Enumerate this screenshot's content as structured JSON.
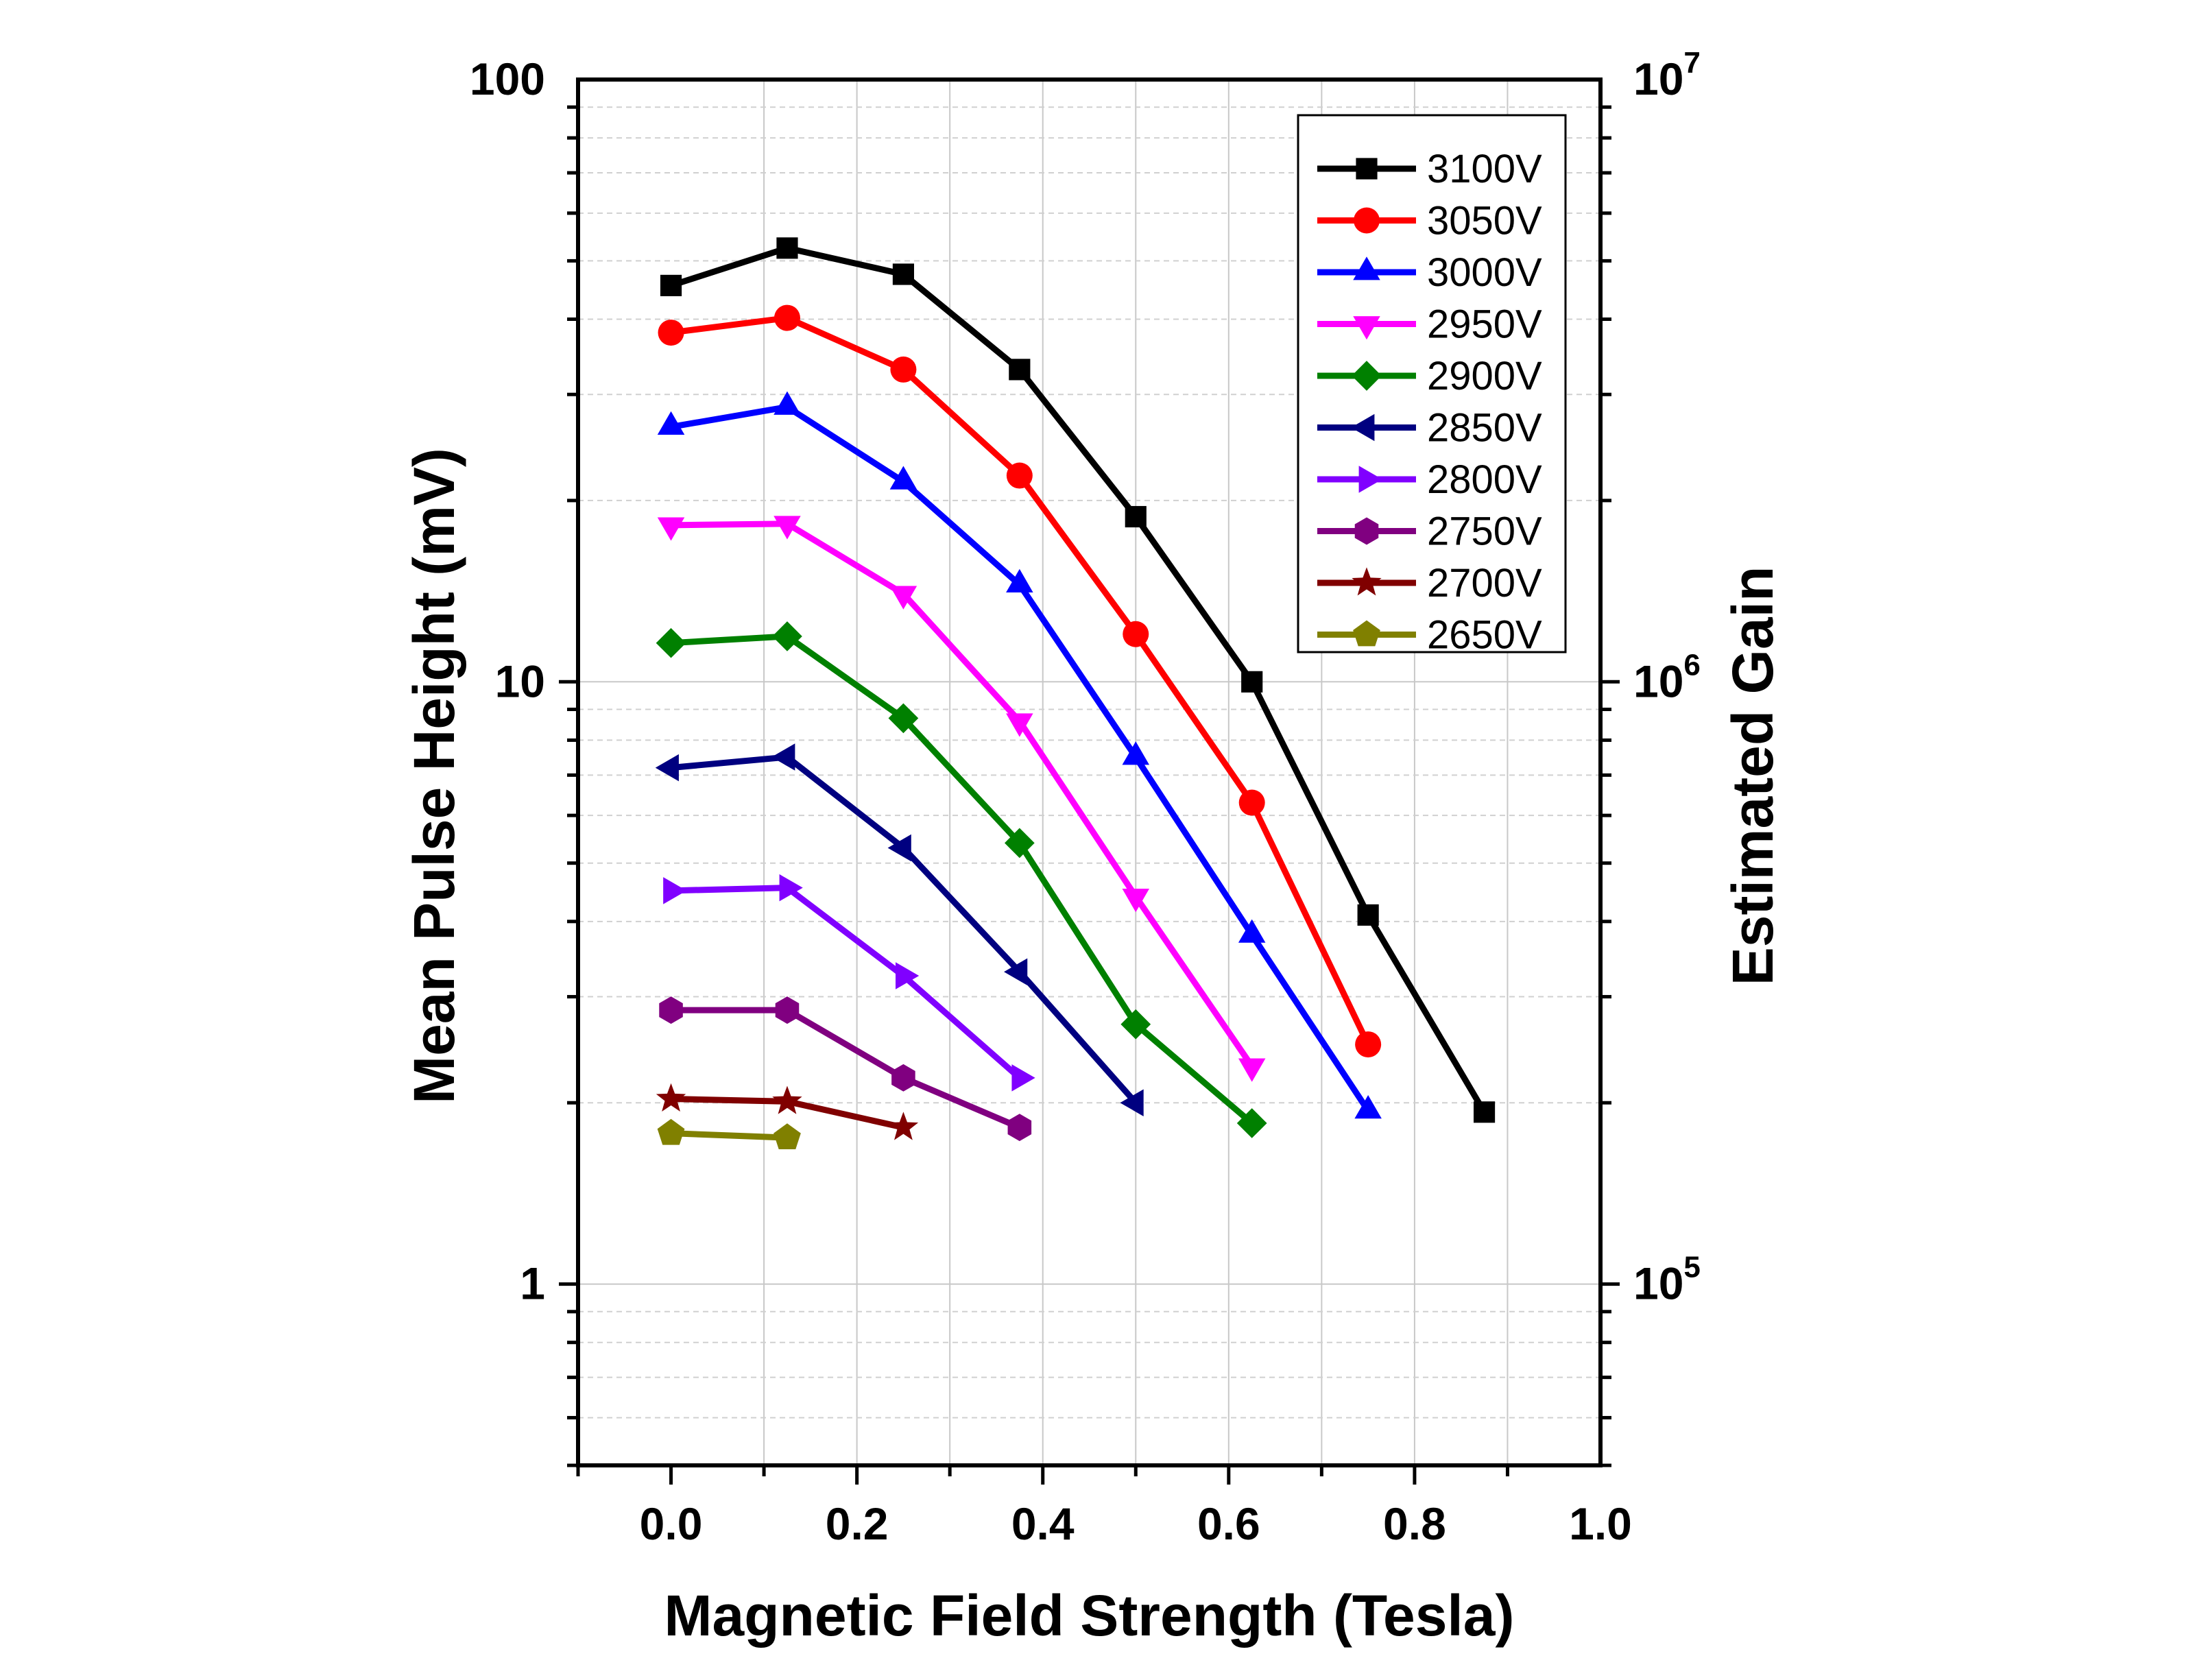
{
  "chart_data": {
    "type": "line",
    "title": "",
    "xlabel": "Magnetic Field Strength (Tesla)",
    "ylabel": "Mean Pulse Height (mV)",
    "y2label": "Estimated Gain",
    "xlim": [
      -0.1,
      1.0
    ],
    "ylim": [
      0.5,
      100
    ],
    "yscale": "log",
    "y2lim": [
      50000,
      10000000
    ],
    "grid": true,
    "legend_position": "top-right",
    "x_ticks": [
      "0.0",
      "0.2",
      "0.4",
      "0.6",
      "0.8",
      "1.0"
    ],
    "x_tick_values": [
      0.0,
      0.2,
      0.4,
      0.6,
      0.8,
      1.0
    ],
    "y_ticks": [
      "1",
      "10",
      "100"
    ],
    "y_tick_values": [
      1,
      10,
      100
    ],
    "y2_ticks": [
      {
        "base": "10",
        "exp": "5",
        "value": 1
      },
      {
        "base": "10",
        "exp": "6",
        "value": 10
      },
      {
        "base": "10",
        "exp": "7",
        "value": 100
      }
    ],
    "series": [
      {
        "name": "3100V",
        "color": "#000000",
        "marker": "square",
        "x": [
          0.0,
          0.125,
          0.25,
          0.375,
          0.5,
          0.625,
          0.75,
          0.875
        ],
        "y": [
          45.5,
          52.5,
          47.5,
          33.0,
          18.8,
          10.0,
          4.1,
          1.93
        ]
      },
      {
        "name": "3050V",
        "color": "#ff0000",
        "marker": "circle",
        "x": [
          0.0,
          0.125,
          0.25,
          0.375,
          0.5,
          0.625,
          0.75
        ],
        "y": [
          38.0,
          40.2,
          33.0,
          22.0,
          12.0,
          6.3,
          2.5
        ]
      },
      {
        "name": "3000V",
        "color": "#0000ff",
        "marker": "triangle-up",
        "x": [
          0.0,
          0.125,
          0.25,
          0.375,
          0.5,
          0.625,
          0.75
        ],
        "y": [
          26.5,
          28.6,
          21.5,
          14.5,
          7.5,
          3.8,
          1.94
        ]
      },
      {
        "name": "2950V",
        "color": "#ff00ff",
        "marker": "triangle-down",
        "x": [
          0.0,
          0.125,
          0.25,
          0.375,
          0.5,
          0.625
        ],
        "y": [
          18.2,
          18.3,
          14.0,
          8.6,
          4.4,
          2.3
        ]
      },
      {
        "name": "2900V",
        "color": "#008000",
        "marker": "diamond",
        "x": [
          0.0,
          0.125,
          0.25,
          0.375,
          0.5,
          0.625
        ],
        "y": [
          11.6,
          11.9,
          8.7,
          5.4,
          2.7,
          1.85
        ]
      },
      {
        "name": "2850V",
        "color": "#000080",
        "marker": "triangle-left",
        "x": [
          0.0,
          0.125,
          0.25,
          0.375,
          0.5
        ],
        "y": [
          7.2,
          7.5,
          5.3,
          3.3,
          2.0
        ]
      },
      {
        "name": "2800V",
        "color": "#8000ff",
        "marker": "triangle-right",
        "x": [
          0.0,
          0.125,
          0.25,
          0.375
        ],
        "y": [
          4.5,
          4.55,
          3.25,
          2.2
        ]
      },
      {
        "name": "2750V",
        "color": "#800080",
        "marker": "hexagon",
        "x": [
          0.0,
          0.125,
          0.25,
          0.375
        ],
        "y": [
          2.85,
          2.85,
          2.2,
          1.82
        ]
      },
      {
        "name": "2700V",
        "color": "#800000",
        "marker": "star",
        "x": [
          0.0,
          0.125,
          0.25
        ],
        "y": [
          2.03,
          2.01,
          1.82
        ]
      },
      {
        "name": "2650V",
        "color": "#808000",
        "marker": "pentagon",
        "x": [
          0.0,
          0.125
        ],
        "y": [
          1.78,
          1.75
        ]
      }
    ]
  }
}
